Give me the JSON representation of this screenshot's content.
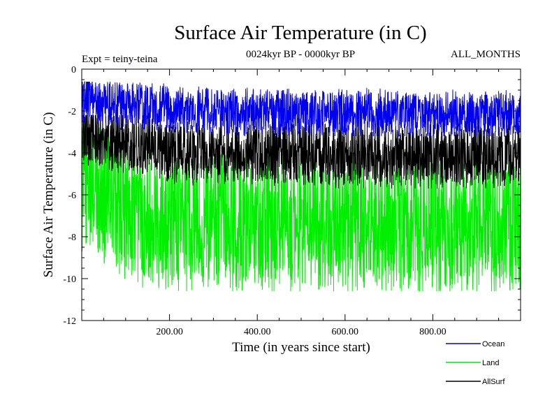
{
  "chart_data": {
    "type": "line",
    "title": "Surface Air Temperature (in C)",
    "subtitle_left": "Expt = teiny-teina",
    "subtitle_center": "0024kyr BP - 0000kyr BP",
    "subtitle_right": "ALL_MONTHS",
    "xlabel": "Time (in years since start)",
    "ylabel": "Surface Air Temperature (in C)",
    "xlim": [
      0,
      1000
    ],
    "ylim": [
      -12,
      0
    ],
    "x_ticks": [
      200,
      400,
      600,
      800
    ],
    "x_tick_labels": [
      "200.00",
      "400.00",
      "600.00",
      "800.00"
    ],
    "y_ticks": [
      0,
      -2,
      -4,
      -6,
      -8,
      -10,
      -12
    ],
    "y_tick_labels": [
      "0",
      "-2",
      "-4",
      "-6",
      "-8",
      "-10",
      "-12"
    ],
    "grid": false,
    "legend_position": "bottom-right",
    "series": [
      {
        "name": "Land",
        "color": "#00ee00",
        "mean_anchors_x": [
          0,
          50,
          100,
          150,
          200,
          250,
          300,
          400,
          600,
          800,
          1000
        ],
        "mean_anchors_y": [
          -5.3,
          -6.0,
          -6.5,
          -6.9,
          -7.2,
          -7.3,
          -7.3,
          -7.3,
          -7.4,
          -7.5,
          -7.4
        ],
        "band_min": -10.6,
        "band_max": -2.8
      },
      {
        "name": "AllSurf",
        "color": "#000000",
        "mean_anchors_x": [
          0,
          50,
          100,
          150,
          200,
          250,
          300,
          400,
          600,
          800,
          1000
        ],
        "mean_anchors_y": [
          -3.0,
          -3.3,
          -3.5,
          -3.7,
          -3.9,
          -4.0,
          -4.0,
          -4.0,
          -4.1,
          -4.2,
          -4.1
        ],
        "band_min": -5.7,
        "band_max": -2.2
      },
      {
        "name": "Ocean",
        "color": "#0000ee",
        "mean_anchors_x": [
          0,
          50,
          100,
          150,
          200,
          250,
          300,
          400,
          600,
          800,
          1000
        ],
        "mean_anchors_y": [
          -1.4,
          -1.6,
          -1.7,
          -1.8,
          -1.9,
          -2.0,
          -2.0,
          -2.1,
          -2.1,
          -2.2,
          -2.2
        ],
        "band_min": -3.2,
        "band_max": -0.6
      }
    ]
  }
}
